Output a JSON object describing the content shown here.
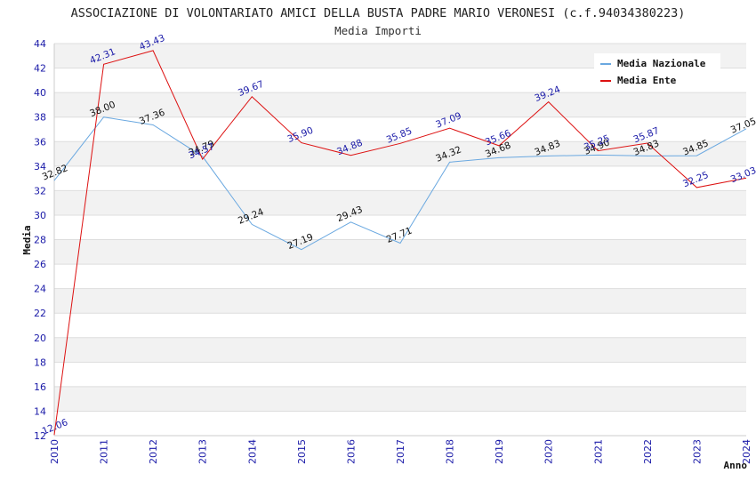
{
  "chart_data": {
    "type": "line",
    "title": "ASSOCIAZIONE DI VOLONTARIATO AMICI DELLA BUSTA PADRE MARIO VERONESI (c.f.94034380223)",
    "subtitle": "Media Importi",
    "xlabel": "Anno",
    "ylabel": "Media",
    "ylim": [
      12,
      44
    ],
    "yticks": [
      12,
      14,
      16,
      18,
      20,
      22,
      24,
      26,
      28,
      30,
      32,
      34,
      36,
      38,
      40,
      42,
      44
    ],
    "x": [
      "2010",
      "2011",
      "2012",
      "2013",
      "2014",
      "2015",
      "2016",
      "2017",
      "2018",
      "2019",
      "2020",
      "2021",
      "2022",
      "2023",
      "2024"
    ],
    "grid": true,
    "legend_position": "top-right",
    "series": [
      {
        "name": "Media Nazionale",
        "color": "#6aa8e0",
        "values": [
          32.82,
          38.0,
          37.36,
          34.79,
          29.24,
          27.19,
          29.43,
          27.71,
          34.32,
          34.68,
          34.83,
          34.9,
          34.83,
          34.85,
          37.05
        ],
        "labels": [
          "32.82",
          "38.00",
          "37.36",
          "34.79",
          "29.24",
          "27.19",
          "29.43",
          "27.71",
          "34.32",
          "34.68",
          "34.83",
          "34.90",
          "34.83",
          "34.85",
          "37.05"
        ]
      },
      {
        "name": "Media Ente",
        "color": "#dd1111",
        "values": [
          12.06,
          42.31,
          43.43,
          34.57,
          39.67,
          35.9,
          34.88,
          35.85,
          37.09,
          35.66,
          39.24,
          35.25,
          35.87,
          32.25,
          33.03
        ],
        "labels": [
          "12.06",
          "42.31",
          "43.43",
          "34.57",
          "39.67",
          "35.90",
          "34.88",
          "35.85",
          "37.09",
          "35.66",
          "39.24",
          "35.25",
          "35.87",
          "32.25",
          "33.03"
        ]
      }
    ]
  }
}
